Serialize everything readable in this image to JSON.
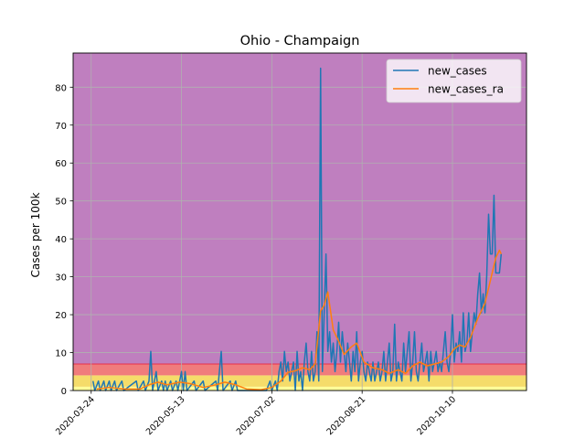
{
  "chart_data": {
    "type": "line",
    "title": "Ohio - Champaign",
    "ylabel": "Cases per 100k",
    "xlabel": "",
    "x_start": "2020-03-14",
    "x_end": "2020-11-20",
    "ylim": [
      0,
      89
    ],
    "yticks": [
      0,
      10,
      20,
      30,
      40,
      50,
      60,
      70,
      80
    ],
    "xticks": [
      {
        "date": "2020-03-24",
        "label": "2020-03-24"
      },
      {
        "date": "2020-05-13",
        "label": "2020-05-13"
      },
      {
        "date": "2020-07-02",
        "label": "2020-07-02"
      },
      {
        "date": "2020-08-21",
        "label": "2020-08-21"
      },
      {
        "date": "2020-10-10",
        "label": "2020-10-10"
      }
    ],
    "grid": true,
    "legend_position": "top-right",
    "bands": [
      {
        "from": 0,
        "to": 1,
        "color": "#ffff99"
      },
      {
        "from": 1,
        "to": 4,
        "color": "#f5dc6a"
      },
      {
        "from": 4,
        "to": 7,
        "color": "#f07c7c"
      },
      {
        "from": 7,
        "to": 89,
        "color": "#bf7fbf"
      }
    ],
    "series": [
      {
        "name": "new_cases",
        "color": "#1f77b4",
        "points": [
          [
            "2020-03-25",
            2.5
          ],
          [
            "2020-03-26",
            0
          ],
          [
            "2020-03-28",
            2.5
          ],
          [
            "2020-03-29",
            0
          ],
          [
            "2020-03-31",
            2.5
          ],
          [
            "2020-04-01",
            0
          ],
          [
            "2020-04-03",
            2.5
          ],
          [
            "2020-04-04",
            0
          ],
          [
            "2020-04-06",
            2.5
          ],
          [
            "2020-04-07",
            0
          ],
          [
            "2020-04-10",
            2.5
          ],
          [
            "2020-04-11",
            0
          ],
          [
            "2020-04-18",
            2.5
          ],
          [
            "2020-04-19",
            0
          ],
          [
            "2020-04-22",
            2.5
          ],
          [
            "2020-04-23",
            0
          ],
          [
            "2020-04-25",
            2.5
          ],
          [
            "2020-04-26",
            10.3
          ],
          [
            "2020-04-27",
            0
          ],
          [
            "2020-04-29",
            5
          ],
          [
            "2020-04-30",
            0
          ],
          [
            "2020-05-02",
            2.5
          ],
          [
            "2020-05-03",
            0
          ],
          [
            "2020-05-04",
            2.5
          ],
          [
            "2020-05-05",
            0
          ],
          [
            "2020-05-07",
            2.5
          ],
          [
            "2020-05-08",
            0
          ],
          [
            "2020-05-10",
            2.5
          ],
          [
            "2020-05-11",
            0
          ],
          [
            "2020-05-13",
            5
          ],
          [
            "2020-05-14",
            0
          ],
          [
            "2020-05-15",
            5
          ],
          [
            "2020-05-16",
            0
          ],
          [
            "2020-05-20",
            2.5
          ],
          [
            "2020-05-21",
            0
          ],
          [
            "2020-05-25",
            2.5
          ],
          [
            "2020-05-26",
            0
          ],
          [
            "2020-06-01",
            2.5
          ],
          [
            "2020-06-02",
            0
          ],
          [
            "2020-06-04",
            10.3
          ],
          [
            "2020-06-05",
            0
          ],
          [
            "2020-06-09",
            2.5
          ],
          [
            "2020-06-10",
            0
          ],
          [
            "2020-06-12",
            2.5
          ],
          [
            "2020-06-13",
            0
          ],
          [
            "2020-06-29",
            0
          ],
          [
            "2020-07-01",
            2.5
          ],
          [
            "2020-07-02",
            0
          ],
          [
            "2020-07-04",
            2.5
          ],
          [
            "2020-07-05",
            0
          ],
          [
            "2020-07-06",
            5
          ],
          [
            "2020-07-07",
            7.5
          ],
          [
            "2020-07-08",
            2.5
          ],
          [
            "2020-07-09",
            10.3
          ],
          [
            "2020-07-10",
            5
          ],
          [
            "2020-07-11",
            7.5
          ],
          [
            "2020-07-12",
            2.5
          ],
          [
            "2020-07-14",
            7.5
          ],
          [
            "2020-07-15",
            0
          ],
          [
            "2020-07-16",
            10.3
          ],
          [
            "2020-07-17",
            2.5
          ],
          [
            "2020-07-18",
            5
          ],
          [
            "2020-07-19",
            0
          ],
          [
            "2020-07-20",
            7.5
          ],
          [
            "2020-07-21",
            12.5
          ],
          [
            "2020-07-22",
            5
          ],
          [
            "2020-07-23",
            2.5
          ],
          [
            "2020-07-24",
            10.3
          ],
          [
            "2020-07-25",
            2.5
          ],
          [
            "2020-07-26",
            5
          ],
          [
            "2020-07-27",
            15.5
          ],
          [
            "2020-07-28",
            2.5
          ],
          [
            "2020-07-29",
            85
          ],
          [
            "2020-07-30",
            5
          ],
          [
            "2020-07-31",
            20.5
          ],
          [
            "2020-08-01",
            36
          ],
          [
            "2020-08-02",
            10.3
          ],
          [
            "2020-08-03",
            15.5
          ],
          [
            "2020-08-04",
            7.5
          ],
          [
            "2020-08-05",
            12.5
          ],
          [
            "2020-08-06",
            5
          ],
          [
            "2020-08-07",
            10.3
          ],
          [
            "2020-08-08",
            18
          ],
          [
            "2020-08-09",
            7.5
          ],
          [
            "2020-08-10",
            15.5
          ],
          [
            "2020-08-11",
            10.3
          ],
          [
            "2020-08-12",
            5
          ],
          [
            "2020-08-13",
            12.5
          ],
          [
            "2020-08-14",
            7.5
          ],
          [
            "2020-08-15",
            2.5
          ],
          [
            "2020-08-16",
            10.3
          ],
          [
            "2020-08-17",
            5
          ],
          [
            "2020-08-18",
            15.5
          ],
          [
            "2020-08-19",
            2.5
          ],
          [
            "2020-08-20",
            7.5
          ],
          [
            "2020-08-21",
            10.3
          ],
          [
            "2020-08-22",
            5
          ],
          [
            "2020-08-23",
            2.5
          ],
          [
            "2020-08-24",
            7.5
          ],
          [
            "2020-08-25",
            5
          ],
          [
            "2020-08-26",
            2.5
          ],
          [
            "2020-08-27",
            7.5
          ],
          [
            "2020-08-28",
            2.5
          ],
          [
            "2020-08-29",
            5
          ],
          [
            "2020-08-30",
            7.5
          ],
          [
            "2020-08-31",
            2.5
          ],
          [
            "2020-09-01",
            5
          ],
          [
            "2020-09-02",
            10.3
          ],
          [
            "2020-09-03",
            2.5
          ],
          [
            "2020-09-04",
            7.5
          ],
          [
            "2020-09-05",
            12.5
          ],
          [
            "2020-09-06",
            2.5
          ],
          [
            "2020-09-07",
            5
          ],
          [
            "2020-09-08",
            17.5
          ],
          [
            "2020-09-09",
            2.5
          ],
          [
            "2020-09-10",
            7.5
          ],
          [
            "2020-09-11",
            5
          ],
          [
            "2020-09-12",
            2.5
          ],
          [
            "2020-09-13",
            12.5
          ],
          [
            "2020-09-14",
            5
          ],
          [
            "2020-09-15",
            10.3
          ],
          [
            "2020-09-16",
            15.5
          ],
          [
            "2020-09-17",
            2.5
          ],
          [
            "2020-09-18",
            7.5
          ],
          [
            "2020-09-19",
            15.5
          ],
          [
            "2020-09-20",
            5
          ],
          [
            "2020-09-21",
            2.5
          ],
          [
            "2020-09-22",
            7.5
          ],
          [
            "2020-09-23",
            12.5
          ],
          [
            "2020-09-24",
            5
          ],
          [
            "2020-09-25",
            7.5
          ],
          [
            "2020-09-26",
            10.3
          ],
          [
            "2020-09-27",
            2.5
          ],
          [
            "2020-09-28",
            10.3
          ],
          [
            "2020-09-29",
            5
          ],
          [
            "2020-09-30",
            7.5
          ],
          [
            "2020-10-01",
            10.3
          ],
          [
            "2020-10-02",
            5
          ],
          [
            "2020-10-03",
            7.5
          ],
          [
            "2020-10-04",
            5
          ],
          [
            "2020-10-05",
            10.3
          ],
          [
            "2020-10-06",
            15.5
          ],
          [
            "2020-10-07",
            7.5
          ],
          [
            "2020-10-08",
            5
          ],
          [
            "2020-10-09",
            10.3
          ],
          [
            "2020-10-10",
            20
          ],
          [
            "2020-10-11",
            7.5
          ],
          [
            "2020-10-12",
            12.5
          ],
          [
            "2020-10-13",
            10.3
          ],
          [
            "2020-10-14",
            15.5
          ],
          [
            "2020-10-15",
            7.5
          ],
          [
            "2020-10-16",
            20.5
          ],
          [
            "2020-10-17",
            10.3
          ],
          [
            "2020-10-18",
            12.5
          ],
          [
            "2020-10-19",
            20.5
          ],
          [
            "2020-10-20",
            10.3
          ],
          [
            "2020-10-21",
            15.5
          ],
          [
            "2020-10-22",
            20.5
          ],
          [
            "2020-10-23",
            17.5
          ],
          [
            "2020-10-24",
            25.5
          ],
          [
            "2020-10-25",
            31
          ],
          [
            "2020-10-26",
            20.5
          ],
          [
            "2020-10-27",
            25.5
          ],
          [
            "2020-10-28",
            20.5
          ],
          [
            "2020-10-29",
            30.5
          ],
          [
            "2020-10-30",
            46.5
          ],
          [
            "2020-10-31",
            36
          ],
          [
            "2020-11-01",
            36
          ],
          [
            "2020-11-02",
            51.5
          ],
          [
            "2020-11-03",
            31
          ],
          [
            "2020-11-04",
            31
          ],
          [
            "2020-11-05",
            31
          ],
          [
            "2020-11-06",
            36
          ]
        ]
      },
      {
        "name": "new_cases_ra",
        "color": "#ff7f0e",
        "points": [
          [
            "2020-03-27",
            0.4
          ],
          [
            "2020-04-03",
            0.8
          ],
          [
            "2020-04-12",
            0.4
          ],
          [
            "2020-04-20",
            0.4
          ],
          [
            "2020-04-25",
            1.5
          ],
          [
            "2020-04-30",
            2.2
          ],
          [
            "2020-05-05",
            1.5
          ],
          [
            "2020-05-12",
            2.2
          ],
          [
            "2020-05-18",
            1.8
          ],
          [
            "2020-05-25",
            0.8
          ],
          [
            "2020-06-01",
            1.5
          ],
          [
            "2020-06-06",
            2.2
          ],
          [
            "2020-06-12",
            1.5
          ],
          [
            "2020-06-18",
            0.4
          ],
          [
            "2020-06-26",
            0.2
          ],
          [
            "2020-07-02",
            0.8
          ],
          [
            "2020-07-07",
            2.5
          ],
          [
            "2020-07-11",
            4.8
          ],
          [
            "2020-07-15",
            5.2
          ],
          [
            "2020-07-19",
            6
          ],
          [
            "2020-07-23",
            5.5
          ],
          [
            "2020-07-26",
            7
          ],
          [
            "2020-07-29",
            21
          ],
          [
            "2020-07-31",
            22.5
          ],
          [
            "2020-08-02",
            26
          ],
          [
            "2020-08-05",
            16
          ],
          [
            "2020-08-08",
            13
          ],
          [
            "2020-08-11",
            9.5
          ],
          [
            "2020-08-15",
            11.5
          ],
          [
            "2020-08-18",
            12.5
          ],
          [
            "2020-08-22",
            7.5
          ],
          [
            "2020-08-27",
            6
          ],
          [
            "2020-09-01",
            5.5
          ],
          [
            "2020-09-05",
            4.5
          ],
          [
            "2020-09-10",
            5.5
          ],
          [
            "2020-09-14",
            4.5
          ],
          [
            "2020-09-18",
            6.5
          ],
          [
            "2020-09-22",
            7.5
          ],
          [
            "2020-09-26",
            6.5
          ],
          [
            "2020-09-30",
            7
          ],
          [
            "2020-10-04",
            7.5
          ],
          [
            "2020-10-08",
            9
          ],
          [
            "2020-10-11",
            11
          ],
          [
            "2020-10-14",
            12
          ],
          [
            "2020-10-17",
            11.5
          ],
          [
            "2020-10-20",
            14
          ],
          [
            "2020-10-24",
            19
          ],
          [
            "2020-10-28",
            23
          ],
          [
            "2020-11-01",
            31
          ],
          [
            "2020-11-03",
            35
          ],
          [
            "2020-11-05",
            37
          ],
          [
            "2020-11-06",
            36
          ]
        ]
      }
    ]
  }
}
